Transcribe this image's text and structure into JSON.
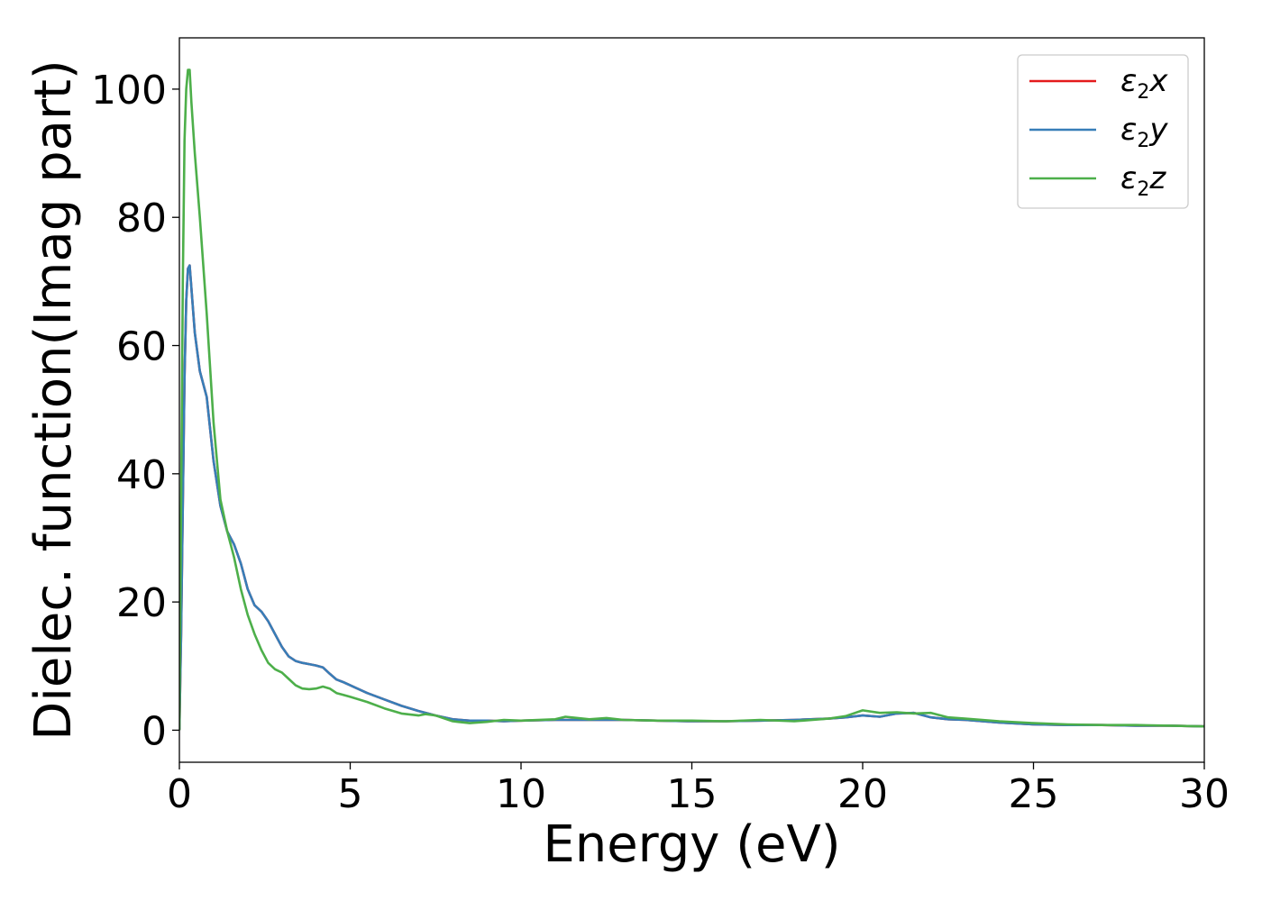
{
  "chart_data": {
    "type": "line",
    "title": "",
    "xlabel": "Energy (eV)",
    "ylabel": "Dielec. function(Imag part)",
    "xlim": [
      0,
      30
    ],
    "ylim": [
      -5,
      108
    ],
    "xticks": [
      0,
      5,
      10,
      15,
      20,
      25,
      30
    ],
    "yticks": [
      0,
      20,
      40,
      60,
      80,
      100
    ],
    "xtick_labels": [
      "0",
      "5",
      "10",
      "15",
      "20",
      "25",
      "30"
    ],
    "ytick_labels": [
      "0",
      "20",
      "40",
      "60",
      "80",
      "100"
    ],
    "grid": false,
    "legend_position": "top-right",
    "series": [
      {
        "name": "ε2x",
        "legend_base": "ε",
        "legend_sub": "2",
        "legend_var": "x",
        "color": "#e41a1c",
        "x": [
          0,
          0.05,
          0.1,
          0.15,
          0.2,
          0.25,
          0.3,
          0.35,
          0.45,
          0.6,
          0.8,
          1.0,
          1.2,
          1.4,
          1.6,
          1.8,
          2.0,
          2.2,
          2.4,
          2.6,
          2.8,
          3.0,
          3.2,
          3.4,
          3.6,
          3.8,
          4.0,
          4.2,
          4.4,
          4.6,
          4.8,
          5.0,
          5.5,
          6.0,
          6.5,
          7.0,
          7.5,
          8.0,
          8.5,
          9.0,
          9.5,
          10,
          11,
          12,
          13,
          14,
          15,
          16,
          17,
          18,
          19,
          19.5,
          20,
          20.5,
          21,
          21.5,
          22,
          22.5,
          23,
          23.5,
          24,
          25,
          26,
          27,
          28,
          29,
          30
        ],
        "values": [
          0,
          15,
          35,
          55,
          67,
          72,
          72.5,
          69,
          62,
          56,
          52,
          42,
          35,
          31,
          29,
          26,
          22,
          19.5,
          18.5,
          17,
          15,
          13,
          11.5,
          10.8,
          10.5,
          10.3,
          10.1,
          9.8,
          8.8,
          7.9,
          7.5,
          7.0,
          5.8,
          4.8,
          3.8,
          3.0,
          2.3,
          1.7,
          1.5,
          1.5,
          1.4,
          1.5,
          1.6,
          1.6,
          1.6,
          1.5,
          1.4,
          1.4,
          1.5,
          1.6,
          1.8,
          2.0,
          2.3,
          2.1,
          2.6,
          2.7,
          2.0,
          1.7,
          1.6,
          1.4,
          1.2,
          0.9,
          0.8,
          0.8,
          0.7,
          0.7,
          0.6
        ]
      },
      {
        "name": "ε2y",
        "legend_base": "ε",
        "legend_sub": "2",
        "legend_var": "y",
        "color": "#377eb8",
        "x": [
          0,
          0.05,
          0.1,
          0.15,
          0.2,
          0.25,
          0.3,
          0.35,
          0.45,
          0.6,
          0.8,
          1.0,
          1.2,
          1.4,
          1.6,
          1.8,
          2.0,
          2.2,
          2.4,
          2.6,
          2.8,
          3.0,
          3.2,
          3.4,
          3.6,
          3.8,
          4.0,
          4.2,
          4.4,
          4.6,
          4.8,
          5.0,
          5.5,
          6.0,
          6.5,
          7.0,
          7.5,
          8.0,
          8.5,
          9.0,
          9.5,
          10,
          11,
          12,
          13,
          14,
          15,
          16,
          17,
          18,
          19,
          19.5,
          20,
          20.5,
          21,
          21.5,
          22,
          22.5,
          23,
          23.5,
          24,
          25,
          26,
          27,
          28,
          29,
          30
        ],
        "values": [
          0,
          15,
          35,
          55,
          67,
          72,
          72.5,
          69,
          62,
          56,
          52,
          42,
          35,
          31,
          29,
          26,
          22,
          19.5,
          18.5,
          17,
          15,
          13,
          11.5,
          10.8,
          10.5,
          10.3,
          10.1,
          9.8,
          8.8,
          7.9,
          7.5,
          7.0,
          5.8,
          4.8,
          3.8,
          3.0,
          2.3,
          1.7,
          1.5,
          1.5,
          1.4,
          1.5,
          1.6,
          1.6,
          1.6,
          1.5,
          1.4,
          1.4,
          1.5,
          1.6,
          1.8,
          2.0,
          2.3,
          2.1,
          2.6,
          2.7,
          2.0,
          1.7,
          1.6,
          1.4,
          1.2,
          0.9,
          0.8,
          0.8,
          0.7,
          0.7,
          0.6
        ]
      },
      {
        "name": "ε2z",
        "legend_base": "ε",
        "legend_sub": "2",
        "legend_var": "z",
        "color": "#4daf4a",
        "x": [
          0,
          0.05,
          0.1,
          0.15,
          0.2,
          0.25,
          0.3,
          0.35,
          0.45,
          0.6,
          0.8,
          1.0,
          1.2,
          1.4,
          1.6,
          1.8,
          2.0,
          2.2,
          2.4,
          2.6,
          2.8,
          3.0,
          3.2,
          3.4,
          3.6,
          3.8,
          4.0,
          4.2,
          4.4,
          4.6,
          4.8,
          5.0,
          5.5,
          6.0,
          6.5,
          7.0,
          7.2,
          7.5,
          8.0,
          8.5,
          9.0,
          9.5,
          10,
          11,
          11.3,
          12,
          12.5,
          13,
          14,
          15,
          16,
          17,
          18,
          19,
          19.5,
          20,
          20.5,
          21,
          21.5,
          22,
          22.5,
          23,
          23.5,
          24,
          25,
          26,
          27,
          28,
          29,
          30
        ],
        "values": [
          0,
          35,
          70,
          92,
          100,
          103,
          103,
          98,
          90,
          80,
          65,
          48,
          36,
          31,
          27,
          22,
          18,
          15,
          12.5,
          10.5,
          9.5,
          9,
          8,
          7,
          6.5,
          6.4,
          6.5,
          6.8,
          6.5,
          5.8,
          5.5,
          5.2,
          4.4,
          3.4,
          2.6,
          2.3,
          2.5,
          2.3,
          1.4,
          1.1,
          1.3,
          1.6,
          1.5,
          1.7,
          2.1,
          1.7,
          1.9,
          1.6,
          1.5,
          1.5,
          1.4,
          1.6,
          1.4,
          1.8,
          2.2,
          3.1,
          2.7,
          2.8,
          2.6,
          2.7,
          2.0,
          1.8,
          1.6,
          1.4,
          1.1,
          0.9,
          0.8,
          0.8,
          0.7,
          0.6
        ]
      }
    ]
  }
}
